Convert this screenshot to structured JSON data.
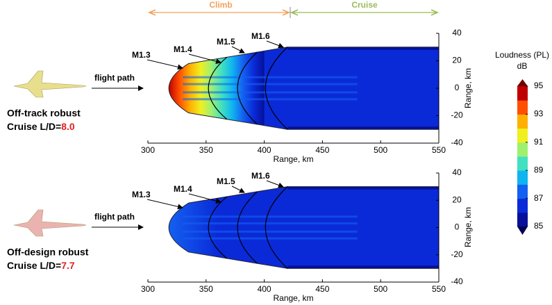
{
  "chart_data": [
    {
      "type": "contour",
      "panel_title": "Off-track robust",
      "ld_label": "Cruise L/D=",
      "ld_value": "8.0",
      "flight_path": "flight path",
      "xlabel": "Range, km",
      "ylabel": "Range, km",
      "xlim": [
        300,
        550
      ],
      "xticks": [
        300,
        350,
        400,
        450,
        500,
        550
      ],
      "ylim": [
        -40,
        40
      ],
      "yticks": [
        -40,
        -20,
        0,
        20,
        40
      ],
      "mach_labels": [
        "M1.3",
        "M1.4",
        "M1.5",
        "M1.6"
      ],
      "aircraft_color": "#e8df8c"
    },
    {
      "type": "contour",
      "panel_title": "Off-design robust",
      "ld_label": "Cruise L/D=",
      "ld_value": "7.7",
      "flight_path": "flight path",
      "xlabel": "Range, km",
      "ylabel": "Range, km",
      "xlim": [
        300,
        550
      ],
      "xticks": [
        300,
        350,
        400,
        450,
        500,
        550
      ],
      "ylim": [
        -40,
        40
      ],
      "yticks": [
        -40,
        -20,
        0,
        20,
        40
      ],
      "mach_labels": [
        "M1.3",
        "M1.4",
        "M1.5",
        "M1.6"
      ],
      "aircraft_color": "#eab3b0"
    }
  ],
  "phases": {
    "climb": "Climb",
    "cruise": "Cruise"
  },
  "colorbar": {
    "title": "Loudness (PL)",
    "unit": "dB",
    "lim": [
      85,
      95
    ],
    "ticks": [
      85,
      87,
      89,
      91,
      93,
      95
    ],
    "colors": [
      "#06109a",
      "#0a2ad8",
      "#1460f0",
      "#10b4f0",
      "#40e0c0",
      "#a0f070",
      "#f0f020",
      "#ffb000",
      "#ff5000",
      "#c00000"
    ]
  }
}
